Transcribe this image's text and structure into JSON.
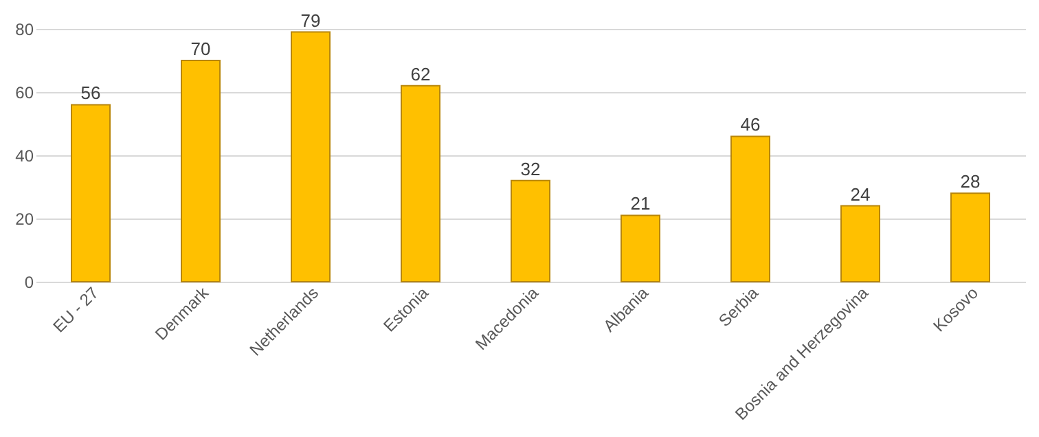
{
  "chart_data": {
    "type": "bar",
    "categories": [
      "EU - 27",
      "Denmark",
      "Netherlands",
      "Estonia",
      "Macedonia",
      "Albania",
      "Serbia",
      "Bosnia and Herzegovina",
      "Kosovo"
    ],
    "values": [
      56,
      70,
      79,
      62,
      32,
      21,
      46,
      24,
      28
    ],
    "color": "#ffc000",
    "ylim": [
      0,
      80
    ],
    "yticks": [
      0,
      20,
      40,
      60,
      80
    ],
    "grid": "y",
    "data_labels": true
  }
}
